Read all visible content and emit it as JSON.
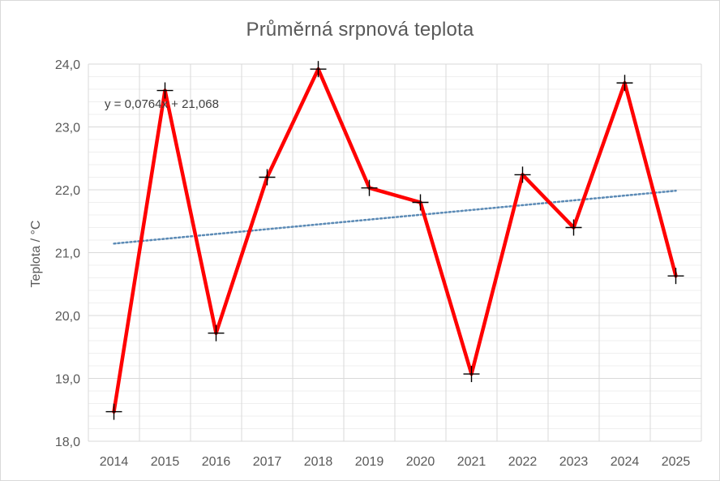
{
  "chart_data": {
    "type": "line",
    "title": "Průměrná srpnová teplota",
    "xlabel": "",
    "ylabel": "Teplota / °C",
    "x": [
      "2014",
      "2015",
      "2016",
      "2017",
      "2018",
      "2019",
      "2020",
      "2021",
      "2022",
      "2023",
      "2024",
      "2025"
    ],
    "series": [
      {
        "values": [
          18.47,
          23.58,
          19.72,
          22.2,
          23.92,
          22.03,
          21.8,
          19.07,
          22.24,
          21.4,
          23.7,
          20.63
        ],
        "color": "#ff0000",
        "marker": "plus"
      }
    ],
    "trendline": {
      "equation": "y = 0,0764x + 21,068",
      "slope": 0.0764,
      "intercept": 21.068,
      "color": "#5b8ab5",
      "style": "dotted"
    },
    "ylim": [
      18.0,
      24.0
    ],
    "yticks": [
      "18,0",
      "19,0",
      "20,0",
      "21,0",
      "22,0",
      "23,0",
      "24,0"
    ],
    "grid": true
  }
}
